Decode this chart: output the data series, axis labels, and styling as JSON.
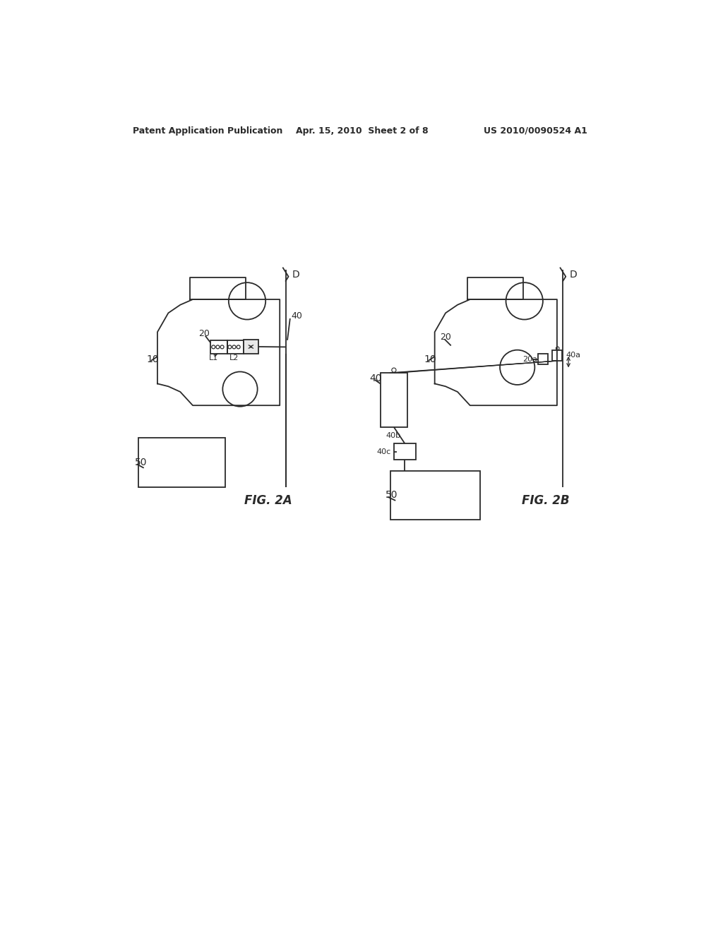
{
  "bg_color": "#ffffff",
  "line_color": "#2a2a2a",
  "header_left": "Patent Application Publication",
  "header_mid": "Apr. 15, 2010  Sheet 2 of 8",
  "header_right": "US 2010/0090524 A1",
  "fig_a_label": "FIG. 2A",
  "fig_b_label": "FIG. 2B"
}
